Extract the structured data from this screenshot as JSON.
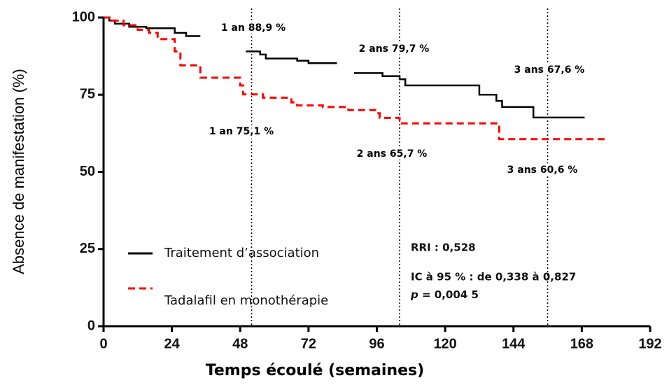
{
  "chart_data": {
    "type": "step-line",
    "x_label": "Temps écoulé (semaines)",
    "y_label": "Absence de manifestation (%)",
    "xlim": [
      0,
      192
    ],
    "xticks": [
      0,
      24,
      48,
      72,
      96,
      120,
      144,
      168,
      192
    ],
    "ylim": [
      0,
      100
    ],
    "yticks": [
      0,
      25,
      50,
      75,
      100
    ],
    "vlines": [
      52,
      104,
      156
    ],
    "series": [
      {
        "name": "Traitement d’association",
        "color": "#000000",
        "dash": false,
        "x": [
          0,
          2,
          2,
          4,
          4,
          9,
          9,
          15,
          15,
          25,
          25,
          29,
          29,
          34,
          null,
          50,
          55,
          55,
          57,
          57,
          68,
          68,
          72,
          72,
          82,
          null,
          88,
          98,
          98,
          104,
          104,
          106,
          106,
          132,
          132,
          138,
          138,
          140,
          140,
          151,
          151,
          169
        ],
        "values": [
          100,
          100,
          99,
          99,
          98,
          98,
          97,
          97,
          96.5,
          96.5,
          95,
          95,
          94,
          94,
          null,
          89,
          89,
          88,
          88,
          86.7,
          86.7,
          86,
          86,
          85.2,
          85.2,
          null,
          82,
          82,
          81,
          81,
          80,
          80,
          78,
          78,
          75,
          75,
          73,
          73,
          71,
          71,
          67.6,
          67.6
        ]
      },
      {
        "name": "Tadalafil en monothérapie",
        "color": "#ff0000",
        "dash": true,
        "x": [
          0,
          3,
          3,
          7,
          7,
          12,
          12,
          16,
          16,
          19,
          19,
          25,
          25,
          27,
          27,
          34,
          34,
          48,
          48,
          49,
          49,
          56,
          56,
          66,
          66,
          68,
          68,
          77,
          77,
          86,
          86,
          96,
          96,
          97,
          97,
          104,
          104,
          139,
          139,
          176
        ],
        "values": [
          100,
          100,
          99,
          99,
          97.5,
          97.5,
          96,
          96,
          95,
          95,
          93,
          93,
          89,
          89,
          84.5,
          84.5,
          80.5,
          80.5,
          78,
          78,
          75.1,
          75.1,
          74,
          74,
          72.5,
          72.5,
          71.5,
          71.5,
          71,
          71,
          70,
          70,
          69,
          69,
          67.5,
          67.5,
          65.7,
          65.7,
          60.6,
          60.6
        ]
      }
    ],
    "annotations": [
      "1 an 88,9 %",
      "2 ans 79,7 %",
      "3 ans 67,6 %",
      "1 an 75,1 %",
      "2 ans 65,7 %",
      "3 ans 60,6 %"
    ],
    "stats": [
      "RRI : 0,528",
      "IC à 95 % : de 0,338 à 0,827"
    ],
    "p_symbol": "p",
    "p_value": "= 0,004 5"
  }
}
